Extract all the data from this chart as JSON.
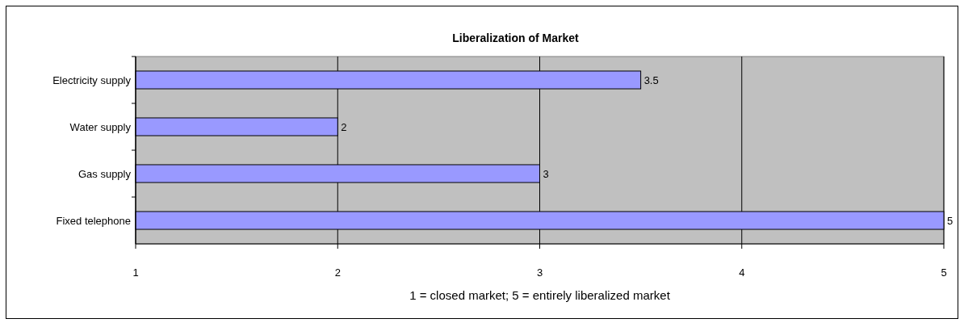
{
  "chart_data": {
    "type": "bar",
    "orientation": "horizontal",
    "title": "Liberalization of Market",
    "xlabel": "1 = closed market; 5 = entirely liberalized market",
    "categories": [
      "Electricity supply",
      "Water supply",
      "Gas supply",
      "Fixed telephone"
    ],
    "values": [
      3.5,
      2,
      3,
      5
    ],
    "color": "#9999ff",
    "xlim": [
      1,
      5
    ],
    "xticks": [
      1,
      2,
      3,
      4,
      5
    ],
    "grid": "x",
    "data_labels": true
  }
}
